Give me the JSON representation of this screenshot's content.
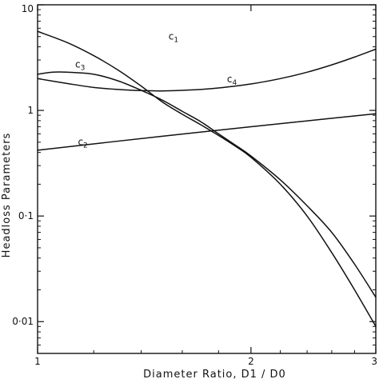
{
  "chart_data": {
    "type": "line",
    "title": "",
    "xlabel": "Diameter Ratio, D1 / D0",
    "ylabel": "Headloss Parameters",
    "x_scale": "log",
    "y_scale": "log",
    "xlim": [
      1,
      3
    ],
    "ylim": [
      0.005,
      10
    ],
    "grid": false,
    "legend": "none",
    "x_ticks": [
      {
        "value": 1,
        "label": "1"
      },
      {
        "value": 2,
        "label": "2"
      },
      {
        "value": 3,
        "label": "3"
      }
    ],
    "y_ticks": [
      {
        "value": 10,
        "label": "10"
      },
      {
        "value": 1,
        "label": "1"
      },
      {
        "value": 0.1,
        "label": "0·1"
      },
      {
        "value": 0.01,
        "label": "0·01"
      }
    ],
    "series": [
      {
        "name": "c1",
        "label_at": [
          1.53,
          4.7
        ],
        "x": [
          1.0,
          1.1,
          1.2,
          1.3,
          1.4,
          1.5,
          1.6,
          1.7,
          1.8,
          1.9,
          2.0,
          2.2,
          2.4,
          2.6,
          2.8,
          3.0
        ],
        "y": [
          5.6,
          4.4,
          3.3,
          2.4,
          1.7,
          1.2,
          0.92,
          0.73,
          0.58,
          0.46,
          0.36,
          0.2,
          0.1,
          0.045,
          0.02,
          0.009
        ]
      },
      {
        "name": "c2",
        "label_at": [
          1.14,
          0.47
        ],
        "x": [
          1.0,
          1.5,
          2.0,
          2.5,
          3.0
        ],
        "y": [
          0.42,
          0.57,
          0.7,
          0.82,
          0.93
        ]
      },
      {
        "name": "c3",
        "label_at": [
          1.13,
          2.55
        ],
        "x": [
          1.0,
          1.05,
          1.1,
          1.2,
          1.3,
          1.4,
          1.5,
          1.6,
          1.7,
          1.8,
          1.9,
          2.0,
          2.2,
          2.4,
          2.6,
          2.8,
          3.0
        ],
        "y": [
          2.2,
          2.3,
          2.3,
          2.2,
          1.9,
          1.55,
          1.25,
          0.98,
          0.78,
          0.6,
          0.47,
          0.37,
          0.22,
          0.125,
          0.07,
          0.035,
          0.017
        ]
      },
      {
        "name": "c4",
        "label_at": [
          1.85,
          1.85
        ],
        "x": [
          1.0,
          1.1,
          1.2,
          1.3,
          1.4,
          1.5,
          1.6,
          1.7,
          1.8,
          2.0,
          2.2,
          2.4,
          2.6,
          2.8,
          3.0
        ],
        "y": [
          2.0,
          1.8,
          1.65,
          1.58,
          1.54,
          1.53,
          1.55,
          1.58,
          1.63,
          1.78,
          2.0,
          2.3,
          2.7,
          3.2,
          3.8
        ]
      }
    ]
  }
}
